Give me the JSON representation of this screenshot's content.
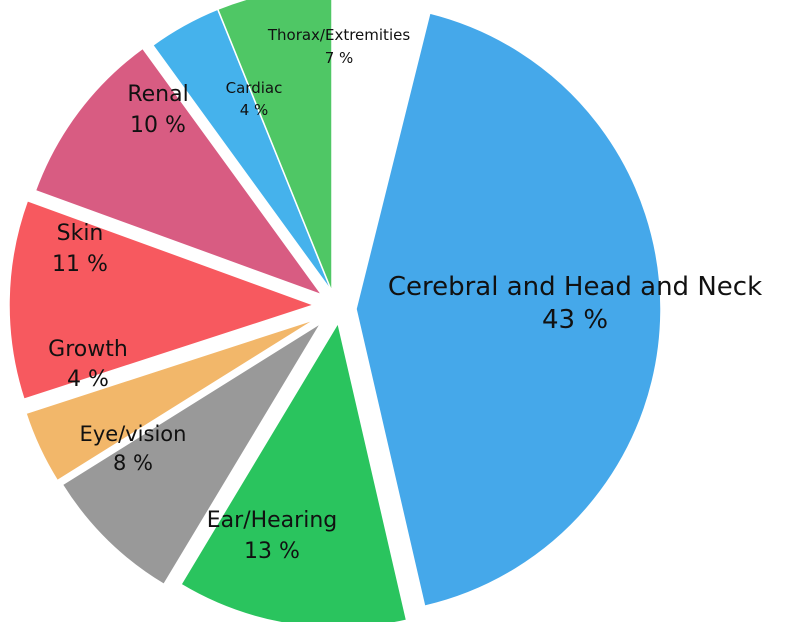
{
  "chart_data": {
    "type": "pie",
    "title": "",
    "slices": [
      {
        "label": "Cerebral and Head and Neck",
        "value_text": "43 %",
        "value": 43,
        "color": "#45A8EA"
      },
      {
        "label": "Ear/Hearing",
        "value_text": "13 %",
        "value": 13,
        "color": "#2AC45E"
      },
      {
        "label": "Eye/vision",
        "value_text": "8 %",
        "value": 8,
        "color": "#999999"
      },
      {
        "label": "Growth",
        "value_text": "4 %",
        "value": 4,
        "color": "#F2B76A"
      },
      {
        "label": "Skin",
        "value_text": "11 %",
        "value": 11,
        "color": "#F7595F"
      },
      {
        "label": "Renal",
        "value_text": "10 %",
        "value": 10,
        "color": "#D85C82"
      },
      {
        "label": "Cardiac",
        "value_text": "4 %",
        "value": 4,
        "color": "#45B2EC"
      },
      {
        "label": "Thorax/Extremities",
        "value_text": "7 %",
        "value": 7,
        "color": "#4FC765"
      }
    ],
    "legend": "none"
  }
}
